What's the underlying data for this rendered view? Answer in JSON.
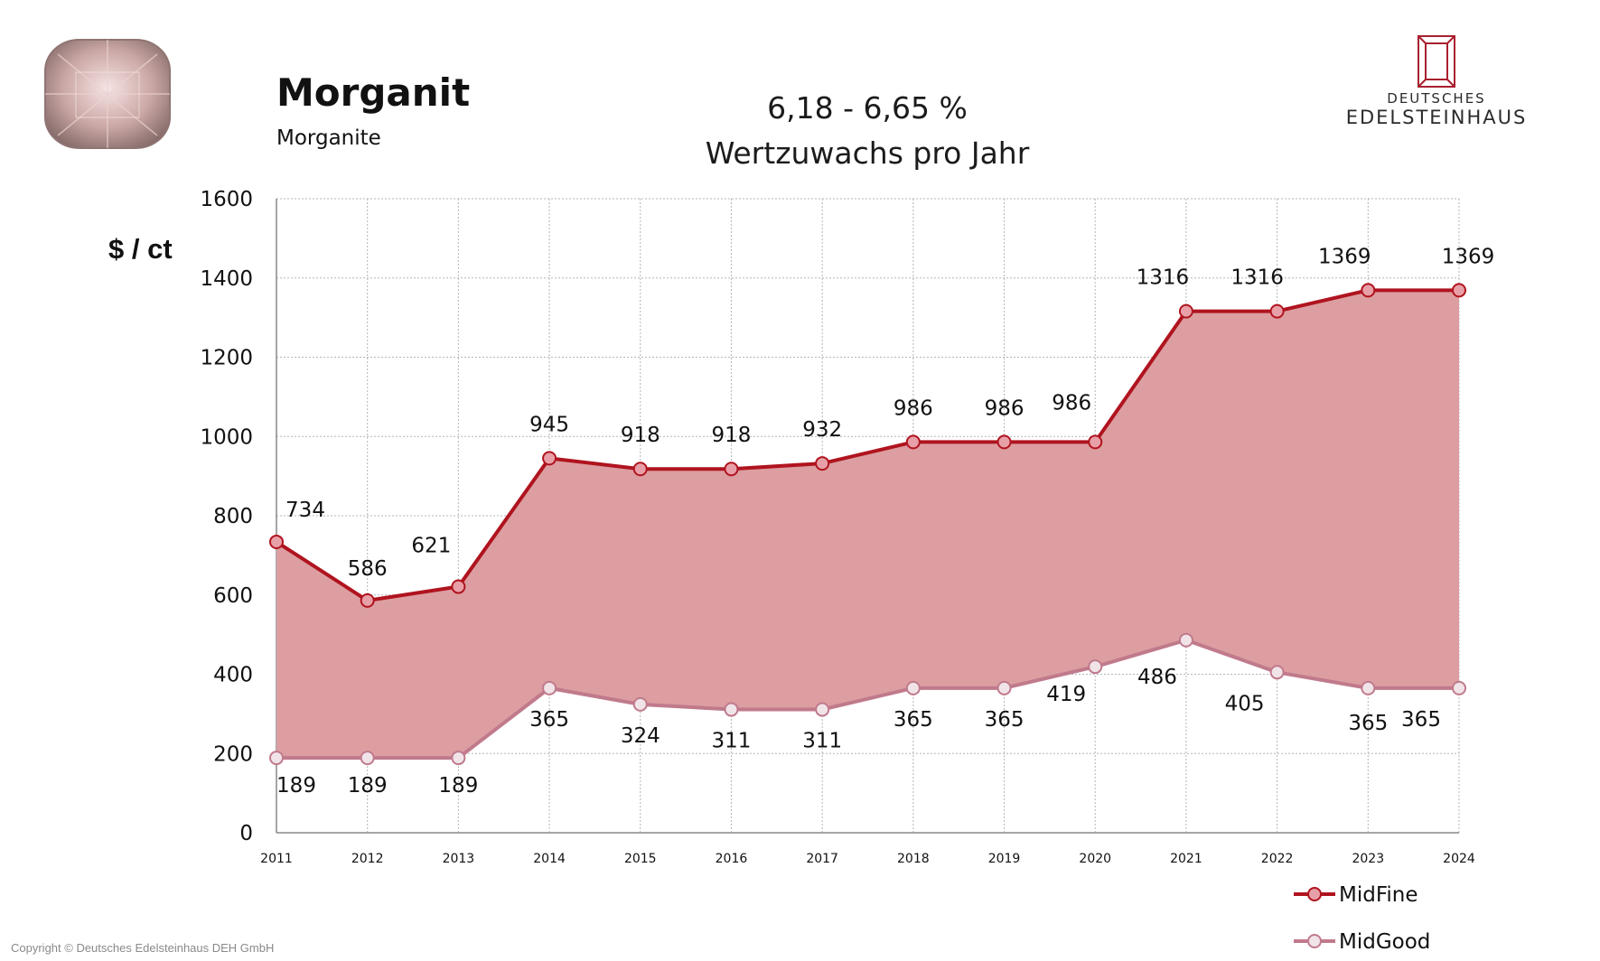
{
  "header": {
    "title": "Morganit",
    "subtitle": "Morganite",
    "growth_line1": "6,18 - 6,65 %",
    "growth_line2": "Wertzuwachs pro Jahr"
  },
  "logo": {
    "line1": "DEUTSCHES",
    "line2": "EDELSTEINHAUS",
    "icon": "gem-frame-icon",
    "color": "#a8202e"
  },
  "footer": {
    "copyright": "Copyright © Deutsches Edelsteinhaus DEH GmbH"
  },
  "chart_data": {
    "type": "area",
    "ylabel": "$ / ct",
    "x": [
      "2011",
      "2012",
      "2013",
      "2014",
      "2015",
      "2016",
      "2017",
      "2018",
      "2019",
      "2020",
      "2021",
      "2022",
      "2023",
      "2024"
    ],
    "ylim": [
      0,
      1600
    ],
    "yticks": [
      "0",
      "200",
      "400",
      "600",
      "800",
      "1000",
      "1200",
      "1400",
      "1600"
    ],
    "grid": true,
    "legend_position": "bottom-right",
    "fill_between": true,
    "series": [
      {
        "name": "MidFine",
        "color": "#b0141f",
        "values": [
          734,
          586,
          621,
          945,
          918,
          918,
          932,
          986,
          986,
          986,
          1316,
          1316,
          1369,
          1369
        ]
      },
      {
        "name": "MidGood",
        "color": "#c07a8c",
        "values": [
          189,
          189,
          189,
          365,
          324,
          311,
          311,
          365,
          365,
          419,
          486,
          405,
          365,
          365
        ]
      }
    ],
    "fill_color": "#dc9ea1"
  }
}
